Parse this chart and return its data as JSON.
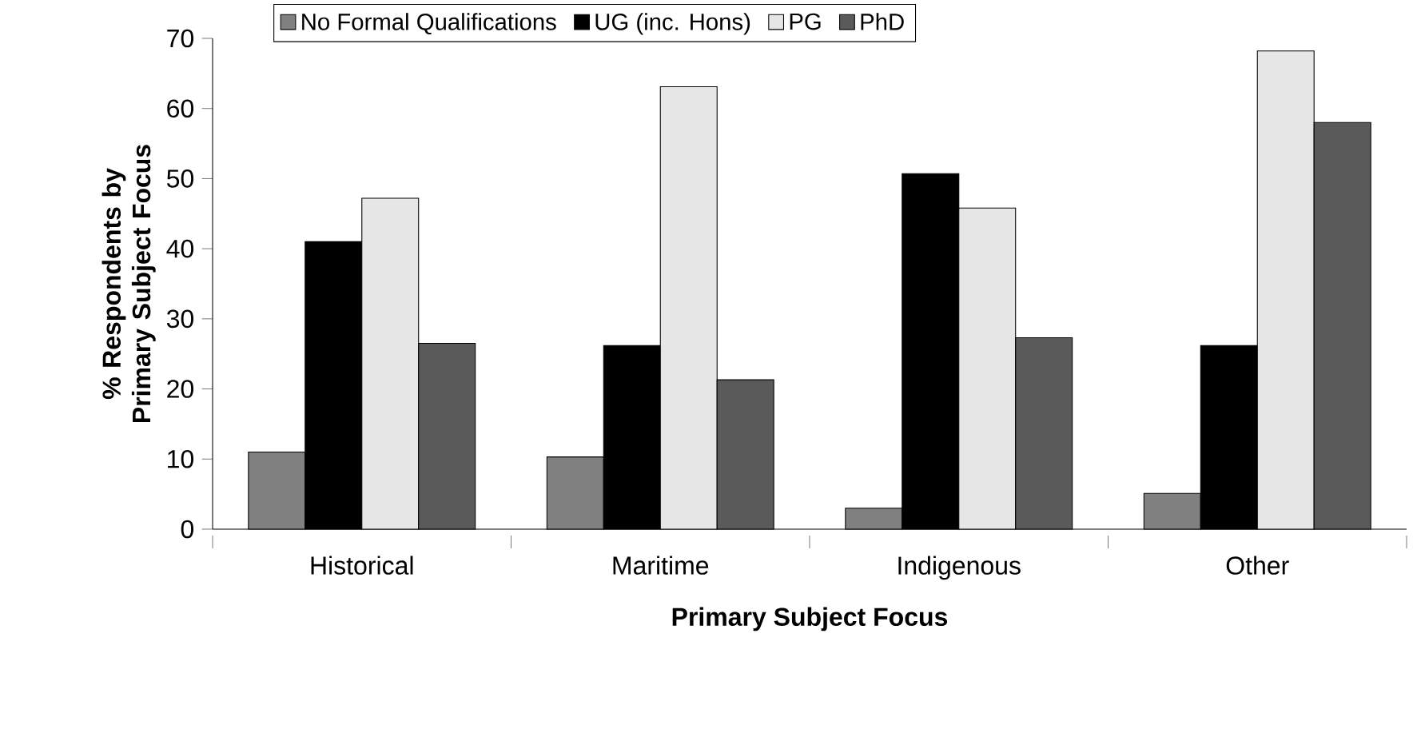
{
  "chart_data": {
    "type": "bar",
    "xlabel": "Primary Subject Focus",
    "ylabel": "% Respondents by Primary Subject Focus",
    "categories": [
      "Historical",
      "Maritime",
      "Indigenous",
      "Other"
    ],
    "series": [
      {
        "name": "No Formal Qualifications",
        "color": "#808080",
        "values": [
          11,
          10.3,
          3,
          5.1
        ]
      },
      {
        "name": "UG (inc. Hons)",
        "color": "#000000",
        "values": [
          41,
          26.2,
          50.7,
          26.2
        ]
      },
      {
        "name": "PG",
        "color": "#e6e6e6",
        "values": [
          47.2,
          63.1,
          45.8,
          68.2
        ]
      },
      {
        "name": "PhD",
        "color": "#5a5a5a",
        "values": [
          26.5,
          21.3,
          27.3,
          58
        ]
      }
    ],
    "ylim": [
      0,
      70
    ],
    "yticks": [
      0,
      10,
      20,
      30,
      40,
      50,
      60,
      70
    ],
    "legend": "top"
  }
}
